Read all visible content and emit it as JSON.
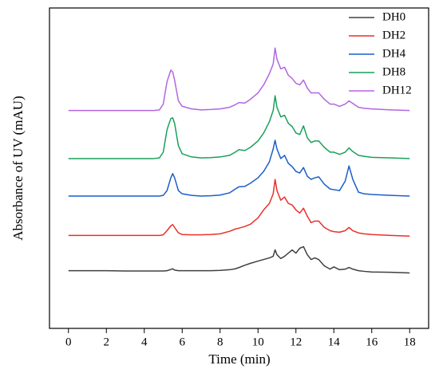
{
  "chart_data": {
    "type": "line",
    "xlabel": "Time (min)",
    "ylabel": "Absorbance of UV (mAU)",
    "x": [
      0,
      1,
      2,
      3,
      4,
      4.5,
      4.8,
      5.0,
      5.2,
      5.4,
      5.5,
      5.6,
      5.8,
      6.0,
      6.5,
      7,
      7.5,
      8,
      8.5,
      8.8,
      9.0,
      9.3,
      9.6,
      10,
      10.3,
      10.6,
      10.8,
      10.9,
      11.0,
      11.2,
      11.4,
      11.6,
      11.8,
      12.0,
      12.2,
      12.4,
      12.6,
      12.8,
      13.0,
      13.2,
      13.5,
      13.8,
      14.0,
      14.3,
      14.6,
      14.8,
      15.0,
      15.3,
      15.6,
      16,
      17,
      18
    ],
    "series": [
      {
        "name": "DH0",
        "color": "#404040",
        "values": [
          18,
          18,
          18,
          17.9,
          17.9,
          17.9,
          17.9,
          17.9,
          18,
          18.4,
          18.6,
          18.2,
          18,
          18,
          18,
          18,
          18,
          18.1,
          18.3,
          18.6,
          19,
          19.7,
          20.3,
          21,
          21.5,
          22,
          22.5,
          24.5,
          23,
          21.8,
          22.5,
          23.5,
          24.5,
          23.5,
          25,
          25.5,
          23,
          21.5,
          22,
          21.5,
          19.5,
          18.5,
          19.2,
          18.3,
          18.5,
          19,
          18.5,
          18,
          17.8,
          17.6,
          17.5,
          17.3
        ]
      },
      {
        "name": "DH2",
        "color": "#e8312a",
        "values": [
          29,
          29,
          29,
          29,
          29,
          29,
          29,
          29.2,
          30.5,
          32,
          32.4,
          31.5,
          29.8,
          29.3,
          29.2,
          29.2,
          29.3,
          29.5,
          30.3,
          31,
          31.3,
          31.8,
          32.5,
          34.5,
          37,
          39,
          42,
          46.5,
          43,
          40,
          41,
          39,
          38.5,
          37,
          36,
          37.5,
          35,
          33,
          33.5,
          33.5,
          31.5,
          30.5,
          30.2,
          30,
          30.5,
          31.5,
          30.5,
          29.8,
          29.5,
          29.3,
          29,
          28.8
        ]
      },
      {
        "name": "DH4",
        "color": "#1a5fc8",
        "values": [
          41.3,
          41.3,
          41.3,
          41.3,
          41.3,
          41.3,
          41.3,
          41.5,
          43,
          47,
          48.3,
          47,
          43,
          42,
          41.5,
          41.3,
          41.4,
          41.6,
          42.3,
          43.5,
          44.2,
          44.3,
          45.3,
          47,
          49,
          52,
          56,
          58.7,
          56,
          53,
          54,
          51.5,
          50.5,
          49,
          48.5,
          50.2,
          47.5,
          46.5,
          47,
          47.3,
          45,
          43.5,
          43.3,
          43,
          46,
          50.7,
          46.5,
          42.5,
          42,
          41.8,
          41.5,
          41.3
        ]
      },
      {
        "name": "DH8",
        "color": "#1aa05a",
        "values": [
          53,
          53,
          53,
          53,
          53,
          53,
          53.2,
          55,
          62,
          65.5,
          65.7,
          64,
          57,
          54.5,
          53.5,
          53.2,
          53.3,
          53.5,
          54,
          55,
          55.8,
          55.5,
          56.5,
          58.5,
          61,
          64.5,
          68,
          72.6,
          69,
          66,
          66.5,
          64,
          63,
          61,
          60.5,
          63.2,
          59.5,
          58,
          58.5,
          58.5,
          56.5,
          55,
          55,
          54.3,
          55,
          56.3,
          55.2,
          54,
          53.7,
          53.4,
          53.2,
          53
        ]
      },
      {
        "name": "DH12",
        "color": "#b266e0",
        "values": [
          68,
          68,
          68,
          68,
          68,
          68,
          68.2,
          70,
          77,
          80.6,
          80,
          77.5,
          71,
          69.3,
          68.5,
          68.2,
          68.3,
          68.5,
          69,
          69.8,
          70.5,
          70.3,
          71.5,
          73.5,
          76,
          79.5,
          82.5,
          87.5,
          84,
          81,
          81.5,
          79,
          78,
          76.5,
          76,
          77.5,
          75,
          73.5,
          73.5,
          73.5,
          71.5,
          70,
          70,
          69.3,
          70,
          71,
          70.2,
          69,
          68.7,
          68.5,
          68.2,
          68
        ]
      }
    ],
    "xlim": [
      -1,
      19
    ],
    "xticks": [
      0,
      2,
      4,
      6,
      8,
      10,
      12,
      14,
      16,
      18
    ],
    "ylim": [
      0,
      100
    ],
    "legend": "upper right"
  }
}
